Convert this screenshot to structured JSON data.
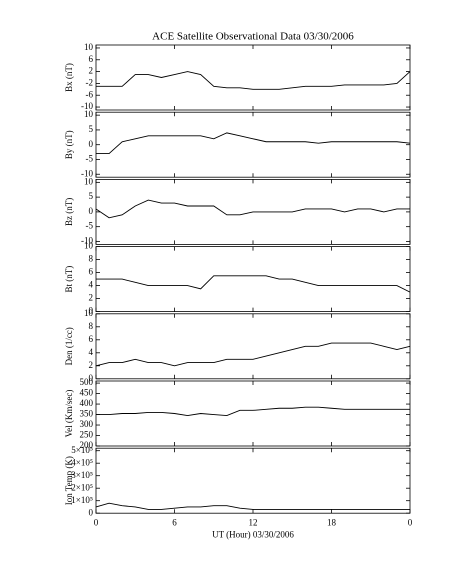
{
  "chart_data": [
    {
      "type": "line",
      "title": "ACE Satellite Observational Data   03/30/2006",
      "ylabel": "Bx (nT)",
      "x": [
        0,
        1,
        2,
        3,
        4,
        5,
        6,
        7,
        8,
        9,
        10,
        11,
        12,
        13,
        14,
        15,
        16,
        17,
        18,
        19,
        20,
        21,
        22,
        23,
        24
      ],
      "values": [
        -3,
        -3,
        -3,
        1,
        1,
        0,
        1,
        2,
        1,
        -3,
        -3.5,
        -3.5,
        -4,
        -4,
        -4,
        -3.5,
        -3,
        -3,
        -3,
        -2.5,
        -2.5,
        -2.5,
        -2.5,
        -2,
        2
      ],
      "ylim": [
        -11,
        11
      ],
      "yticks": [
        -10,
        -6,
        -2,
        2,
        6,
        10
      ],
      "color": "#000000"
    },
    {
      "type": "line",
      "ylabel": "By (nT)",
      "x": [
        0,
        1,
        2,
        3,
        4,
        5,
        6,
        7,
        8,
        9,
        10,
        11,
        12,
        13,
        14,
        15,
        16,
        17,
        18,
        19,
        20,
        21,
        22,
        23,
        24
      ],
      "values": [
        -3,
        -3,
        1,
        2,
        3,
        3,
        3,
        3,
        3,
        2,
        4,
        3,
        2,
        1,
        1,
        1,
        1,
        0.5,
        1,
        1,
        1,
        1,
        1,
        1,
        0.5
      ],
      "ylim": [
        -11,
        11
      ],
      "yticks": [
        -10,
        -5,
        0,
        5,
        10
      ],
      "color": "#000000"
    },
    {
      "type": "line",
      "ylabel": "Bz (nT)",
      "x": [
        0,
        1,
        2,
        3,
        4,
        5,
        6,
        7,
        8,
        9,
        10,
        11,
        12,
        13,
        14,
        15,
        16,
        17,
        18,
        19,
        20,
        21,
        22,
        23,
        24
      ],
      "values": [
        1,
        -2,
        -1,
        2,
        4,
        3,
        3,
        2,
        2,
        2,
        -1,
        -1,
        0,
        0,
        0,
        0,
        1,
        1,
        1,
        0,
        1,
        1,
        0,
        1,
        1
      ],
      "ylim": [
        -11,
        11
      ],
      "yticks": [
        -10,
        -5,
        0,
        5,
        10
      ],
      "color": "#000000"
    },
    {
      "type": "line",
      "ylabel": "Bt (nT)",
      "x": [
        0,
        1,
        2,
        3,
        4,
        5,
        6,
        7,
        8,
        9,
        10,
        11,
        12,
        13,
        14,
        15,
        16,
        17,
        18,
        19,
        20,
        21,
        22,
        23,
        24
      ],
      "values": [
        5,
        5,
        5,
        4.5,
        4,
        4,
        4,
        4,
        3.5,
        5.5,
        5.5,
        5.5,
        5.5,
        5.5,
        5,
        5,
        4.5,
        4,
        4,
        4,
        4,
        4,
        4,
        4,
        3
      ],
      "ylim": [
        0,
        10
      ],
      "yticks": [
        0,
        2,
        4,
        6,
        8,
        10
      ],
      "color": "#000000"
    },
    {
      "type": "line",
      "ylabel": "Den (1/cc)",
      "x": [
        0,
        1,
        2,
        3,
        4,
        5,
        6,
        7,
        8,
        9,
        10,
        11,
        12,
        13,
        14,
        15,
        16,
        17,
        18,
        19,
        20,
        21,
        22,
        23,
        24
      ],
      "values": [
        2,
        2.5,
        2.5,
        3,
        2.5,
        2.5,
        2,
        2.5,
        2.5,
        2.5,
        3,
        3,
        3,
        3.5,
        4,
        4.5,
        5,
        5,
        5.5,
        5.5,
        5.5,
        5.5,
        5,
        4.5,
        5
      ],
      "ylim": [
        0,
        10
      ],
      "yticks": [
        0,
        2,
        4,
        6,
        8,
        10
      ],
      "color": "#000000"
    },
    {
      "type": "line",
      "ylabel": "Vel (Km/sec)",
      "x": [
        0,
        1,
        2,
        3,
        4,
        5,
        6,
        7,
        8,
        9,
        10,
        11,
        12,
        13,
        14,
        15,
        16,
        17,
        18,
        19,
        20,
        21,
        22,
        23,
        24
      ],
      "values": [
        350,
        350,
        355,
        355,
        360,
        360,
        355,
        345,
        355,
        350,
        345,
        370,
        370,
        375,
        380,
        380,
        385,
        385,
        380,
        375,
        375,
        375,
        375,
        375,
        375
      ],
      "ylim": [
        200,
        510
      ],
      "yticks": [
        200,
        250,
        300,
        350,
        400,
        450,
        500
      ],
      "color": "#000000"
    },
    {
      "type": "line",
      "ylabel": "Ion Temp (K)",
      "xlabel": "UT (Hour)  03/30/2006",
      "x": [
        0,
        1,
        2,
        3,
        4,
        5,
        6,
        7,
        8,
        9,
        10,
        11,
        12,
        13,
        14,
        15,
        16,
        17,
        18,
        19,
        20,
        21,
        22,
        23,
        24
      ],
      "values": [
        50000,
        80000,
        60000,
        50000,
        30000,
        30000,
        40000,
        50000,
        50000,
        60000,
        60000,
        40000,
        30000,
        30000,
        30000,
        30000,
        30000,
        30000,
        30000,
        30000,
        30000,
        30000,
        30000,
        30000,
        30000
      ],
      "ylim": [
        0,
        520000
      ],
      "yticks": [
        0,
        {
          "value": 100000,
          "label": "1×10⁵"
        },
        {
          "value": 200000,
          "label": "2×10⁵"
        },
        {
          "value": 300000,
          "label": "3×10⁵"
        },
        {
          "value": 400000,
          "label": "4×10⁵"
        },
        {
          "value": 500000,
          "label": "5×10⁵"
        }
      ],
      "xlim": [
        0,
        24
      ],
      "xticks": [
        0,
        6,
        12,
        18,
        {
          "value": 24,
          "label": "0"
        }
      ],
      "color": "#000000"
    }
  ]
}
